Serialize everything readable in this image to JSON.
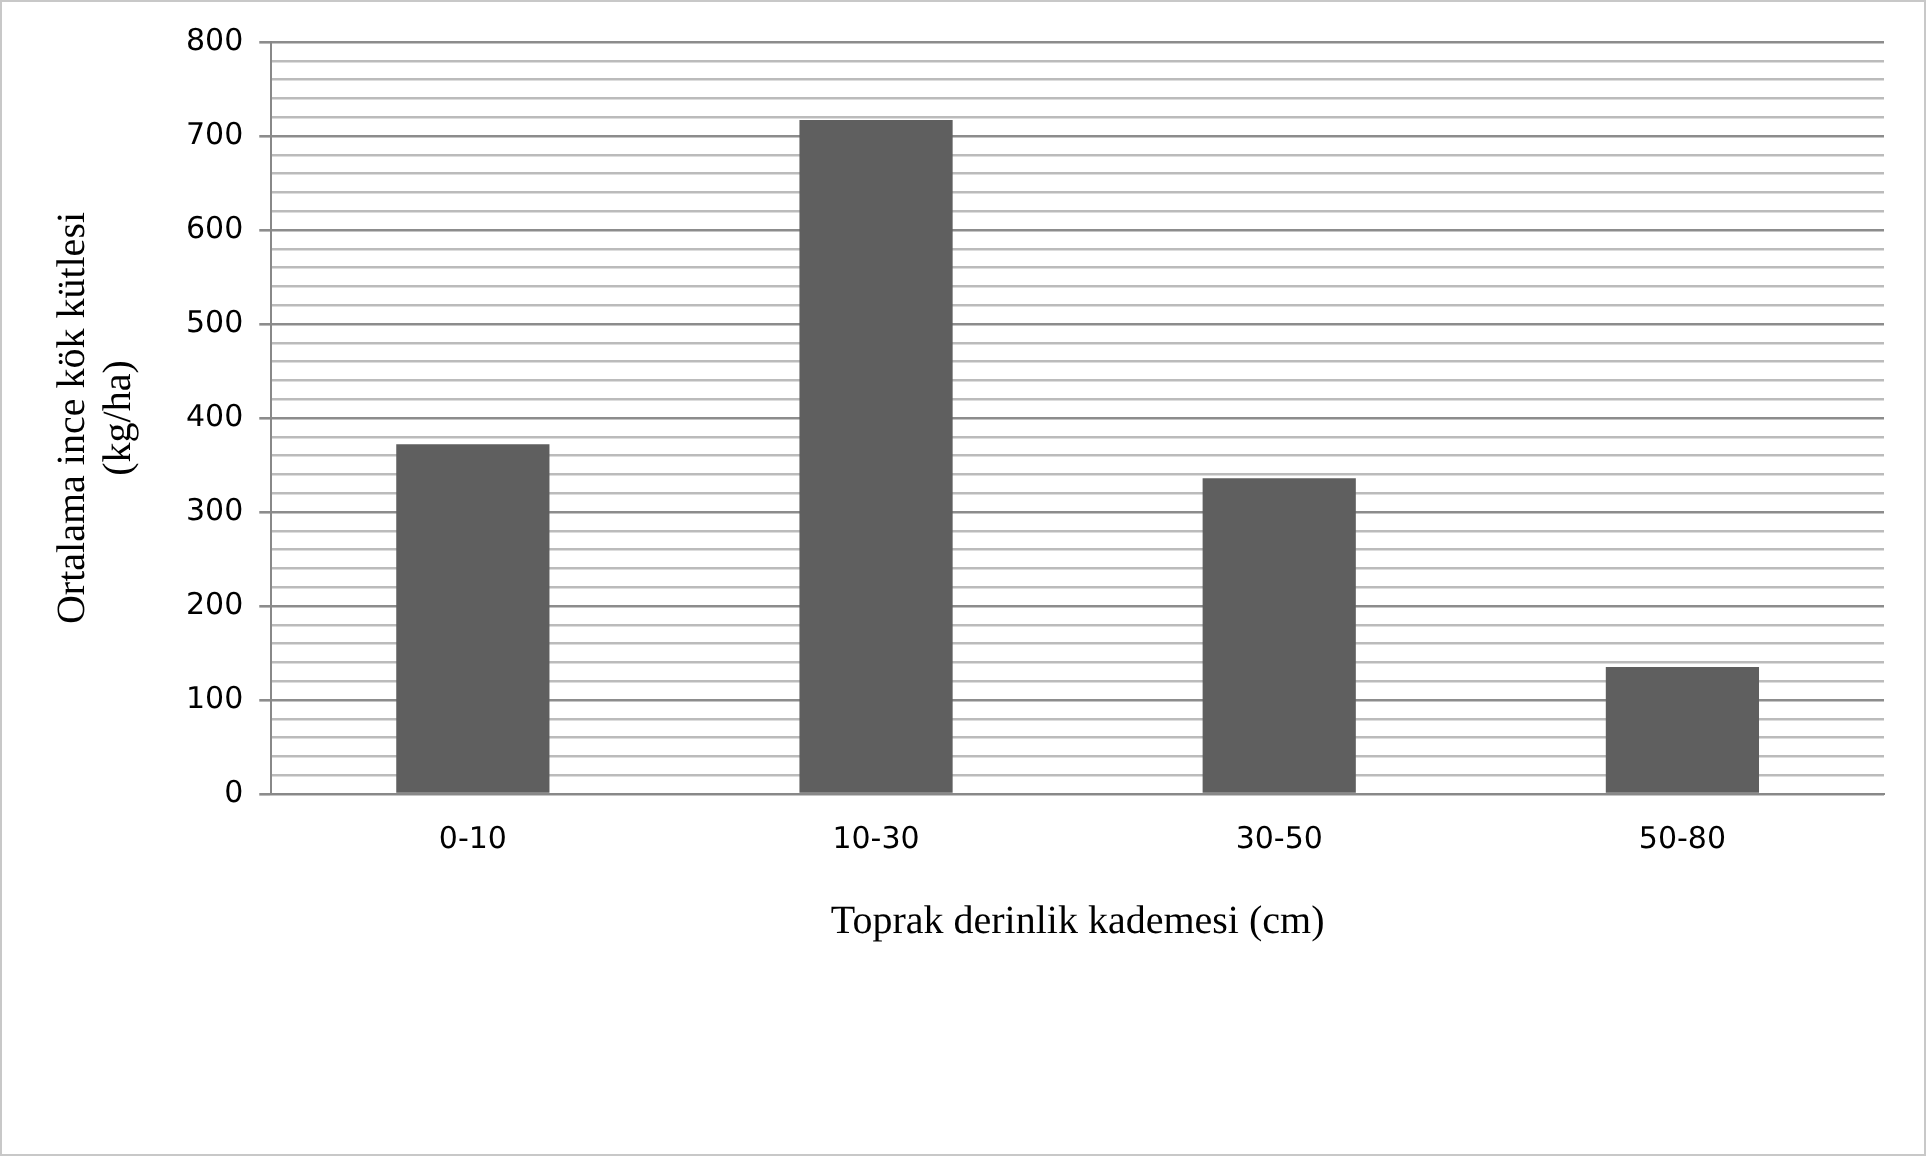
{
  "chart_data": {
    "type": "bar",
    "xlabel": "Toprak derinlik kademesi (cm)",
    "ylabel": "Ortalama ince kök kütlesi (kg/ha)",
    "categories": [
      "0-10",
      "10-30",
      "30-50",
      "50-80"
    ],
    "values": [
      372,
      717,
      336,
      135
    ],
    "color": "#5f5f5f",
    "ylim": [
      0,
      800
    ],
    "yticks": [
      0,
      {
        "value": 20,
        "label": null
      },
      {
        "value": 40,
        "label": null
      },
      {
        "value": 60,
        "label": null
      },
      {
        "value": 80,
        "label": null
      },
      100,
      {
        "value": 120,
        "label": null
      },
      {
        "value": 140,
        "label": null
      },
      {
        "value": 160,
        "label": null
      },
      {
        "value": 180,
        "label": null
      },
      200,
      {
        "value": 220,
        "label": null
      },
      {
        "value": 240,
        "label": null
      },
      {
        "value": 260,
        "label": null
      },
      {
        "value": 280,
        "label": null
      },
      300,
      {
        "value": 320,
        "label": null
      },
      {
        "value": 340,
        "label": null
      },
      {
        "value": 360,
        "label": null
      },
      {
        "value": 380,
        "label": null
      },
      400,
      {
        "value": 420,
        "label": null
      },
      {
        "value": 440,
        "label": null
      },
      {
        "value": 460,
        "label": null
      },
      {
        "value": 480,
        "label": null
      },
      500,
      {
        "value": 520,
        "label": null
      },
      {
        "value": 540,
        "label": null
      },
      {
        "value": 560,
        "label": null
      },
      {
        "value": 580,
        "label": null
      },
      600,
      {
        "value": 620,
        "label": null
      },
      {
        "value": 640,
        "label": null
      },
      {
        "value": 660,
        "label": null
      },
      {
        "value": 680,
        "label": null
      },
      700,
      {
        "value": 720,
        "label": null
      },
      {
        "value": 740,
        "label": null
      },
      {
        "value": 760,
        "label": null
      },
      {
        "value": 780,
        "label": null
      },
      800
    ],
    "grid": "y",
    "legend": false
  }
}
